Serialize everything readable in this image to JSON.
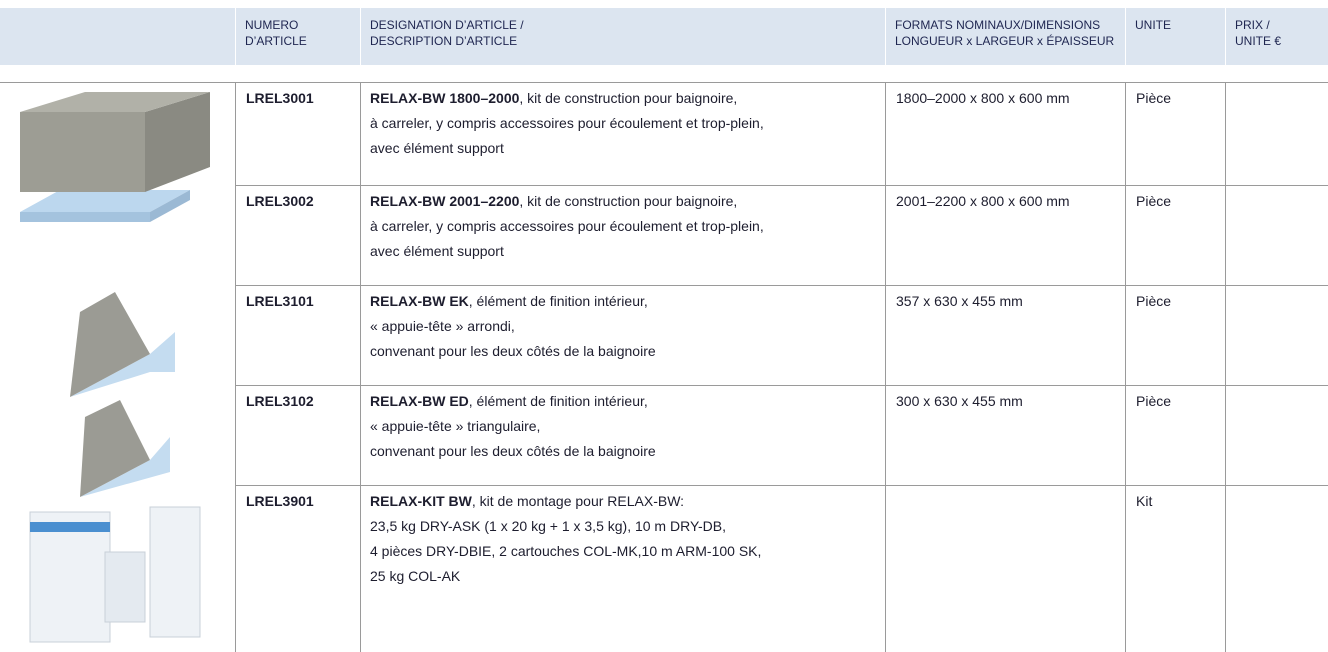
{
  "header": {
    "columns": [
      [
        "NUMERO",
        "D’ARTICLE"
      ],
      [
        "DESIGNATION D’ARTICLE /",
        "DESCRIPTION D’ARTICLE"
      ],
      [
        "FORMATS NOMINAUX/DIMENSIONS",
        "LONGUEUR x LARGEUR x ÉPAISSEUR"
      ],
      [
        "UNITE"
      ],
      [
        "PRIX /",
        "UNITE €"
      ]
    ]
  },
  "table": {
    "rows": [
      {
        "number": "LREL3001",
        "title": "RELAX-BW 1800–2000",
        "lines": [
          ", kit de construction pour baignoire,",
          "à carreler, y compris accessoires pour écoulement et trop-plein,",
          "avec élément support"
        ],
        "format": "1800–2000 x 800 x 600 mm",
        "unit": "Pièce"
      },
      {
        "number": "LREL3002",
        "title": "RELAX-BW 2001–2200",
        "lines": [
          ", kit de construction pour baignoire,",
          "à carreler, y compris accessoires pour écoulement et trop-plein,",
          "avec élément support"
        ],
        "format": "2001–2200 x 800 x 600 mm",
        "unit": "Pièce"
      },
      {
        "number": "LREL3101",
        "title": "RELAX-BW EK",
        "lines": [
          ", élément de finition intérieur,",
          "« appuie-tête » arrondi,",
          "convenant pour les deux côtés de la baignoire"
        ],
        "format": "357 x 630 x 455 mm",
        "unit": "Pièce"
      },
      {
        "number": "LREL3102",
        "title": "RELAX-BW ED",
        "lines": [
          ", élément de finition intérieur,",
          "« appuie-tête » triangulaire,",
          "convenant pour les deux côtés de la baignoire"
        ],
        "format": "300 x 630 x 455 mm",
        "unit": "Pièce"
      },
      {
        "number": "LREL3901",
        "title": "RELAX-KIT BW",
        "lines": [
          ", kit de montage pour RELAX-BW:",
          "23,5 kg DRY-ASK (1 x 20 kg + 1 x 3,5 kg), 10 m DRY-DB,",
          "4 pièces DRY-DBIE, 2 cartouches COL-MK,10 m ARM-100 SK,",
          "25 kg COL-AK"
        ],
        "unit": "Kit"
      }
    ]
  }
}
